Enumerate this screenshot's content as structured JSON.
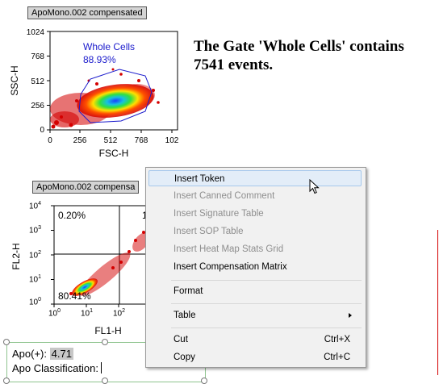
{
  "plot1": {
    "title": "ApoMono.002 compensated",
    "x_label": "FSC-H",
    "y_label": "SSC-H",
    "x_ticks": [
      "0",
      "256",
      "512",
      "768",
      "102"
    ],
    "y_ticks": [
      "1024",
      "768",
      "512",
      "256",
      "0"
    ],
    "gate_name": "Whole Cells",
    "gate_percent": "88.93%"
  },
  "gate_statement": "The Gate 'Whole Cells' contains 7541 events.",
  "plot2": {
    "title": "ApoMono.002 compensa",
    "x_label": "FL1-H",
    "y_label": "FL2-H",
    "y_ticks": [
      {
        "base": "10",
        "exp": "4"
      },
      {
        "base": "10",
        "exp": "3"
      },
      {
        "base": "10",
        "exp": "2"
      },
      {
        "base": "10",
        "exp": "1"
      },
      {
        "base": "10",
        "exp": "0"
      }
    ],
    "x_ticks": [
      {
        "base": "10",
        "exp": "0"
      },
      {
        "base": "10",
        "exp": "1"
      },
      {
        "base": "10",
        "exp": "2"
      }
    ],
    "quadrant_top_left": "0.20%",
    "quadrant_top_right": "1",
    "quadrant_bottom_left": "80.41%"
  },
  "context_menu": {
    "items": [
      {
        "label": "Insert Token",
        "enabled": true,
        "highlighted": true
      },
      {
        "label": "Insert Canned Comment",
        "enabled": false
      },
      {
        "label": "Insert Signature Table",
        "enabled": false
      },
      {
        "label": "Insert SOP Table",
        "enabled": false
      },
      {
        "label": "Insert Heat Map Stats Grid",
        "enabled": false
      },
      {
        "label": "Insert Compensation Matrix",
        "enabled": true
      },
      {
        "label": "Format",
        "enabled": true
      },
      {
        "label": "Table",
        "enabled": true,
        "submenu": true
      },
      {
        "label": "Cut",
        "enabled": true,
        "shortcut": "Ctrl+X"
      },
      {
        "label": "Copy",
        "enabled": true,
        "shortcut": "Ctrl+C"
      }
    ]
  },
  "text_box": {
    "line1_label": "Apo(+):",
    "line1_value": "4.71",
    "line2_label": "Apo Classification:"
  },
  "colors": {
    "gate_blue": "#1a1acc",
    "menu_highlight": "#e3edf8",
    "selection_border": "#8fc48f",
    "density_red": "#d40000"
  },
  "icons": [
    "mouse-pointer-icon",
    "submenu-arrow-icon"
  ]
}
